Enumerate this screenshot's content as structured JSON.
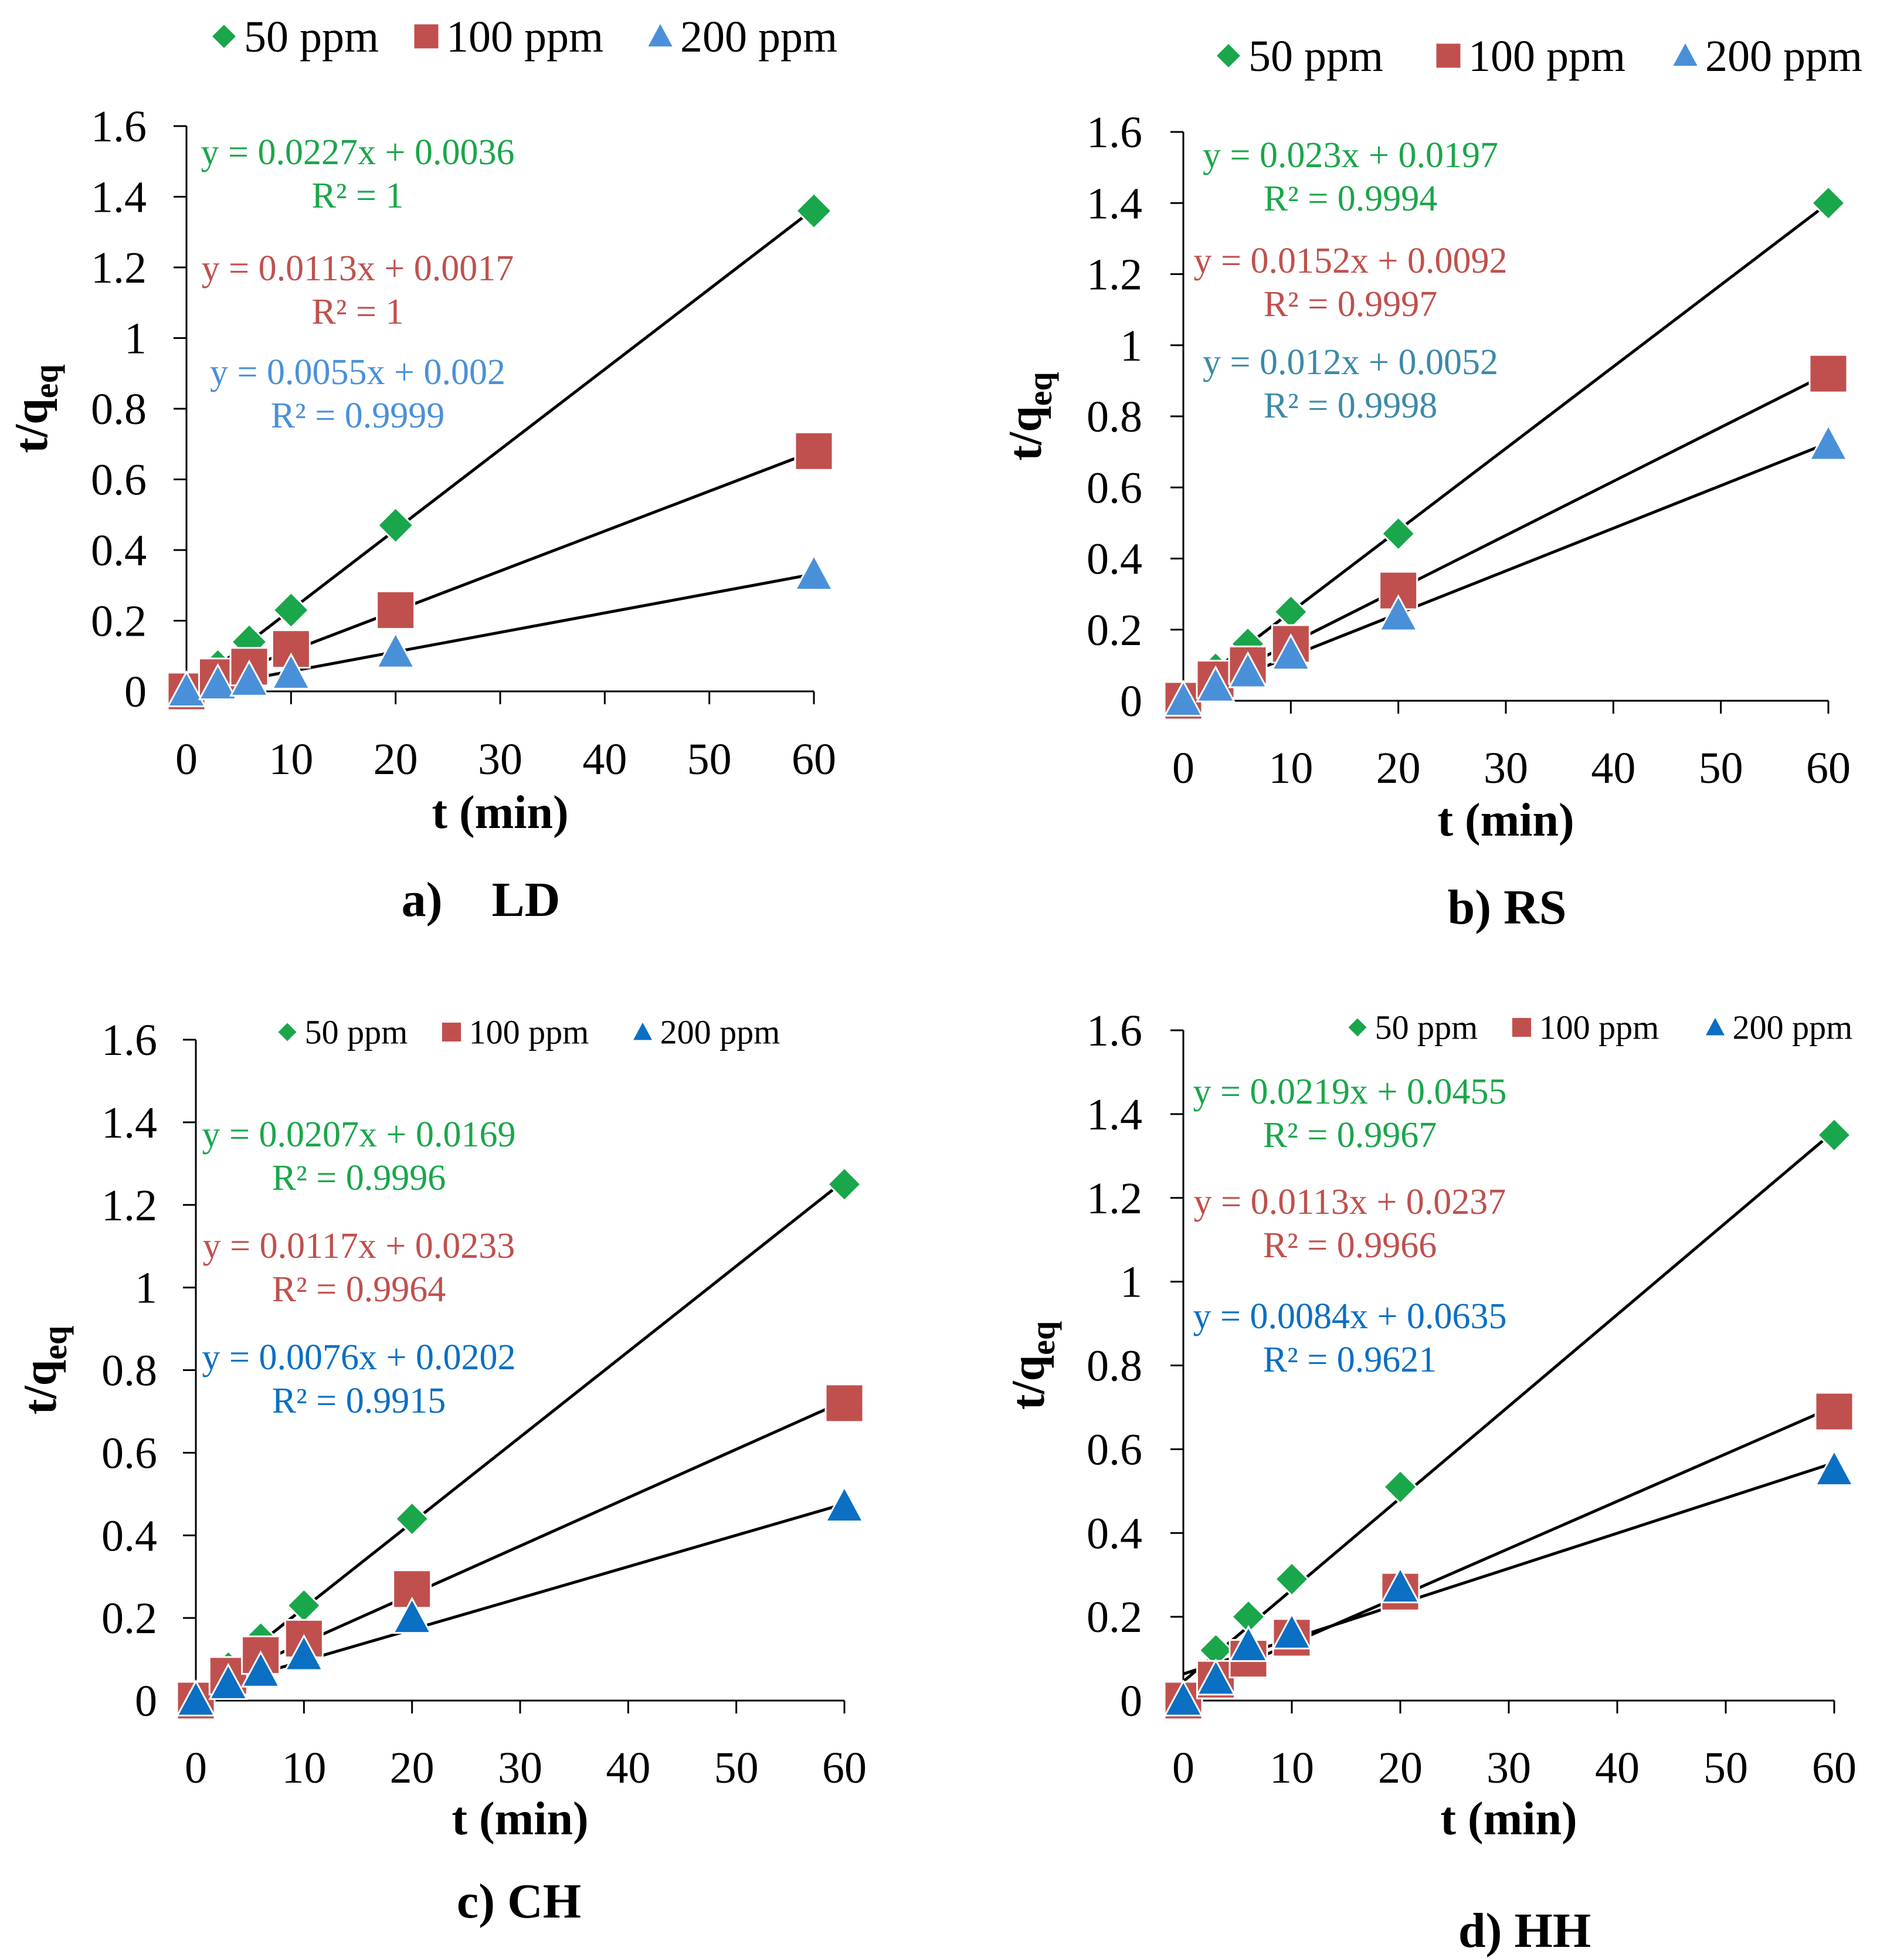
{
  "colors": {
    "green": "#1aa64a",
    "red": "#c0504d",
    "light_blue": "#4a90d9",
    "blue": "#0b6fc4",
    "teal": "#3b8aa8",
    "line": "#000000"
  },
  "chart_data": [
    {
      "type": "scatter",
      "title": "a)    LD",
      "xlabel": "t (min)",
      "ylabel_main": "t/q",
      "ylabel_sub": "eq",
      "xlim": [
        0,
        60
      ],
      "ylim": [
        0,
        1.6
      ],
      "xticks": [
        "0",
        "10",
        "20",
        "30",
        "40",
        "50",
        "60"
      ],
      "yticks": [
        "0",
        "0.2",
        "0.4",
        "0.6",
        "0.8",
        "1",
        "1.2",
        "1.4",
        "1.6"
      ],
      "legend": [
        "50 ppm",
        "100 ppm",
        "200 ppm"
      ],
      "x": [
        0,
        3,
        6,
        10,
        20,
        60
      ],
      "series": [
        {
          "name": "50 ppm",
          "marker": "diamond",
          "color": "#1aa64a",
          "values": [
            0,
            0.07,
            0.14,
            0.23,
            0.47,
            1.36
          ],
          "equation": "y = 0.0227x + 0.0036",
          "r2": "R² = 1",
          "fit": [
            0.0227,
            0.0036
          ]
        },
        {
          "name": "100 ppm",
          "marker": "square",
          "color": "#c0504d",
          "values": [
            0,
            0.04,
            0.07,
            0.12,
            0.23,
            0.68
          ],
          "equation": "y = 0.0113x + 0.0017",
          "r2": "R² = 1",
          "fit": [
            0.0113,
            0.0017
          ]
        },
        {
          "name": "200 ppm",
          "marker": "triangle",
          "color": "#4a90d9",
          "values": [
            0,
            0.02,
            0.03,
            0.05,
            0.11,
            0.33
          ],
          "equation": "y = 0.0055x + 0.002",
          "r2": "R² = 0.9999",
          "fit": [
            0.0055,
            0.002
          ]
        }
      ]
    },
    {
      "type": "scatter",
      "title": "b) RS",
      "xlabel": "t (min)",
      "ylabel_main": "t/q",
      "ylabel_sub": "eq",
      "xlim": [
        0,
        60
      ],
      "ylim": [
        0,
        1.6
      ],
      "xticks": [
        "0",
        "10",
        "20",
        "30",
        "40",
        "50",
        "60"
      ],
      "yticks": [
        "0",
        "0.2",
        "0.4",
        "0.6",
        "0.8",
        "1",
        "1.2",
        "1.4",
        "1.6"
      ],
      "legend": [
        "50 ppm",
        "100 ppm",
        "200 ppm"
      ],
      "x": [
        0,
        3,
        6,
        10,
        20,
        60
      ],
      "series": [
        {
          "name": "50 ppm",
          "marker": "diamond",
          "color": "#1aa64a",
          "values": [
            0,
            0.09,
            0.16,
            0.25,
            0.47,
            1.4
          ],
          "equation": "y = 0.023x + 0.0197",
          "r2": "R² = 0.9994",
          "fit": [
            0.023,
            0.0197
          ]
        },
        {
          "name": "100 ppm",
          "marker": "square",
          "color": "#c0504d",
          "values": [
            0,
            0.06,
            0.1,
            0.16,
            0.31,
            0.92
          ],
          "equation": "y = 0.0152x + 0.0092",
          "r2": "R² = 0.9997",
          "fit": [
            0.0152,
            0.0092
          ]
        },
        {
          "name": "200 ppm",
          "marker": "triangle",
          "color": "#4a90d9",
          "values": [
            0,
            0.04,
            0.08,
            0.13,
            0.24,
            0.72
          ],
          "equation": "y = 0.012x + 0.0052",
          "r2": "R² = 0.9998",
          "fit": [
            0.012,
            0.0052
          ]
        }
      ]
    },
    {
      "type": "scatter",
      "title": "c) CH",
      "xlabel": "t (min)",
      "ylabel_main": "t/q",
      "ylabel_sub": "eq",
      "xlim": [
        0,
        60
      ],
      "ylim": [
        0,
        1.6
      ],
      "xticks": [
        "0",
        "10",
        "20",
        "30",
        "40",
        "50",
        "60"
      ],
      "yticks": [
        "0",
        "0.2",
        "0.4",
        "0.6",
        "0.8",
        "1",
        "1.2",
        "1.4",
        "1.6"
      ],
      "legend": [
        "50 ppm",
        "100 ppm",
        "200 ppm"
      ],
      "x": [
        0,
        3,
        6,
        10,
        20,
        60
      ],
      "series": [
        {
          "name": "50 ppm",
          "marker": "diamond",
          "color": "#1aa64a",
          "values": [
            0,
            0.08,
            0.15,
            0.23,
            0.44,
            1.25
          ],
          "equation": "y = 0.0207x + 0.0169",
          "r2": "R² = 0.9996",
          "fit": [
            0.0207,
            0.0169
          ]
        },
        {
          "name": "100 ppm",
          "marker": "square",
          "color": "#c0504d",
          "values": [
            0,
            0.06,
            0.11,
            0.15,
            0.27,
            0.72
          ],
          "equation": "y = 0.0117x + 0.0233",
          "r2": "R² = 0.9964",
          "fit": [
            0.0117,
            0.0233
          ]
        },
        {
          "name": "200 ppm",
          "marker": "triangle",
          "color": "#0b6fc4",
          "values": [
            0,
            0.04,
            0.07,
            0.11,
            0.2,
            0.47
          ],
          "equation": "y = 0.0076x + 0.0202",
          "r2": "R² = 0.9915",
          "fit": [
            0.0076,
            0.0202
          ]
        }
      ]
    },
    {
      "type": "scatter",
      "title": "d) HH",
      "xlabel": "t (min)",
      "ylabel_main": "t/q",
      "ylabel_sub": "eq",
      "xlim": [
        0,
        60
      ],
      "ylim": [
        0,
        1.6
      ],
      "xticks": [
        "0",
        "10",
        "20",
        "30",
        "40",
        "50",
        "60"
      ],
      "yticks": [
        "0",
        "0.2",
        "0.4",
        "0.6",
        "0.8",
        "1",
        "1.2",
        "1.4",
        "1.6"
      ],
      "legend": [
        "50 ppm",
        "100 ppm",
        "200 ppm"
      ],
      "x": [
        0,
        3,
        6,
        10,
        20,
        60
      ],
      "series": [
        {
          "name": "50 ppm",
          "marker": "diamond",
          "color": "#1aa64a",
          "values": [
            0,
            0.12,
            0.2,
            0.29,
            0.51,
            1.35
          ],
          "equation": "y = 0.0219x + 0.0455",
          "r2": "R² = 0.9967",
          "fit": [
            0.0219,
            0.0455
          ]
        },
        {
          "name": "100 ppm",
          "marker": "square",
          "color": "#c0504d",
          "values": [
            0,
            0.05,
            0.1,
            0.15,
            0.26,
            0.69
          ],
          "equation": "y = 0.0113x + 0.0237",
          "r2": "R² = 0.9966",
          "fit": [
            0.0113,
            0.0237
          ]
        },
        {
          "name": "200 ppm",
          "marker": "triangle",
          "color": "#0b6fc4",
          "values": [
            0,
            0.05,
            0.13,
            0.16,
            0.27,
            0.55
          ],
          "equation": "y = 0.0084x + 0.0635",
          "r2": "R² = 0.9621",
          "fit": [
            0.0084,
            0.0635
          ]
        }
      ]
    }
  ]
}
